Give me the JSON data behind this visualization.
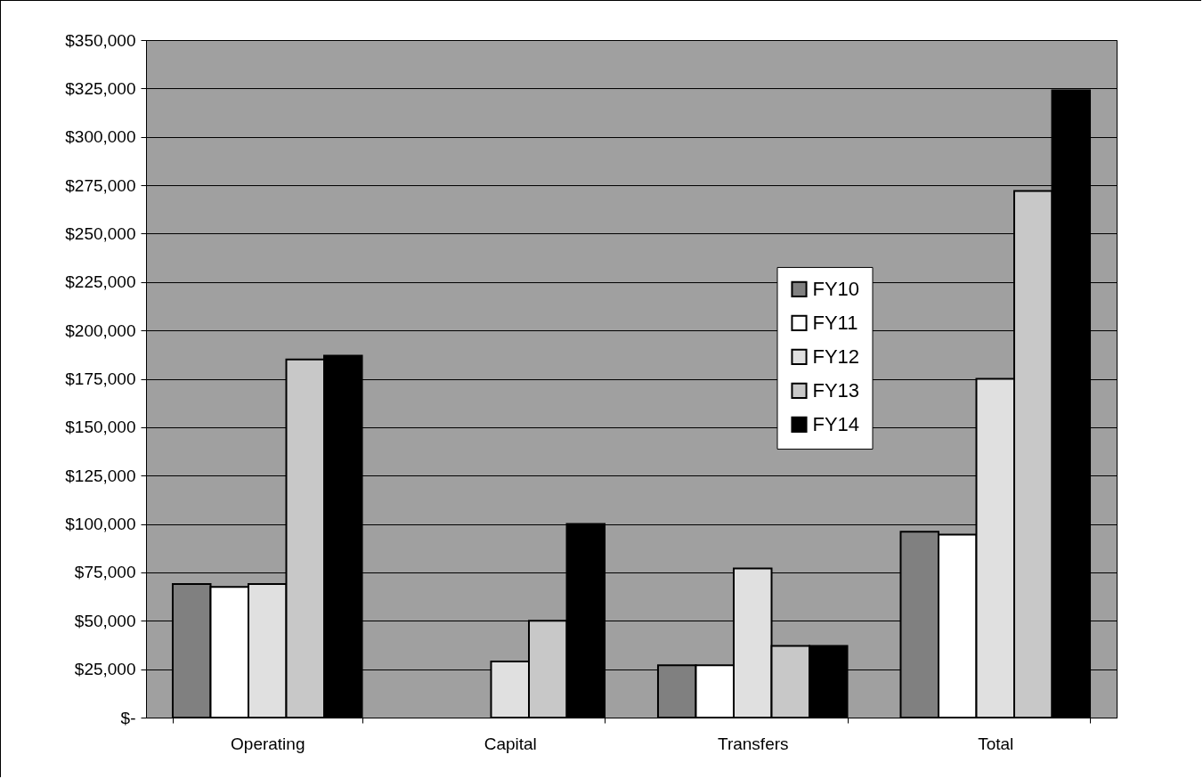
{
  "chart_data": {
    "type": "bar",
    "categories": [
      "Operating",
      "Capital",
      "Transfers",
      "Total"
    ],
    "series": [
      {
        "name": "FY10",
        "color": "#808080",
        "values": [
          69000,
          null,
          27000,
          96000
        ]
      },
      {
        "name": "FY11",
        "color": "#ffffff",
        "values": [
          67500,
          null,
          27000,
          94500
        ]
      },
      {
        "name": "FY12",
        "color": "#e0e0e0",
        "values": [
          69000,
          29000,
          77000,
          175000
        ]
      },
      {
        "name": "FY13",
        "color": "#c8c8c8",
        "values": [
          185000,
          50000,
          37000,
          272000
        ]
      },
      {
        "name": "FY14",
        "color": "#000000",
        "values": [
          187000,
          100000,
          37000,
          324000
        ]
      }
    ],
    "ylim": [
      0,
      350000
    ],
    "yticks": [
      {
        "value": 0,
        "label": "$-"
      },
      {
        "value": 25000,
        "label": "$25,000"
      },
      {
        "value": 50000,
        "label": "$50,000"
      },
      {
        "value": 75000,
        "label": "$75,000"
      },
      {
        "value": 100000,
        "label": "$100,000"
      },
      {
        "value": 125000,
        "label": "$125,000"
      },
      {
        "value": 150000,
        "label": "$150,000"
      },
      {
        "value": 175000,
        "label": "$175,000"
      },
      {
        "value": 200000,
        "label": "$200,000"
      },
      {
        "value": 225000,
        "label": "$225,000"
      },
      {
        "value": 250000,
        "label": "$250,000"
      },
      {
        "value": 275000,
        "label": "$275,000"
      },
      {
        "value": 300000,
        "label": "$300,000"
      },
      {
        "value": 325000,
        "label": "$325,000"
      },
      {
        "value": 350000,
        "label": "$350,000"
      }
    ],
    "grid": "y",
    "legend": "right"
  }
}
